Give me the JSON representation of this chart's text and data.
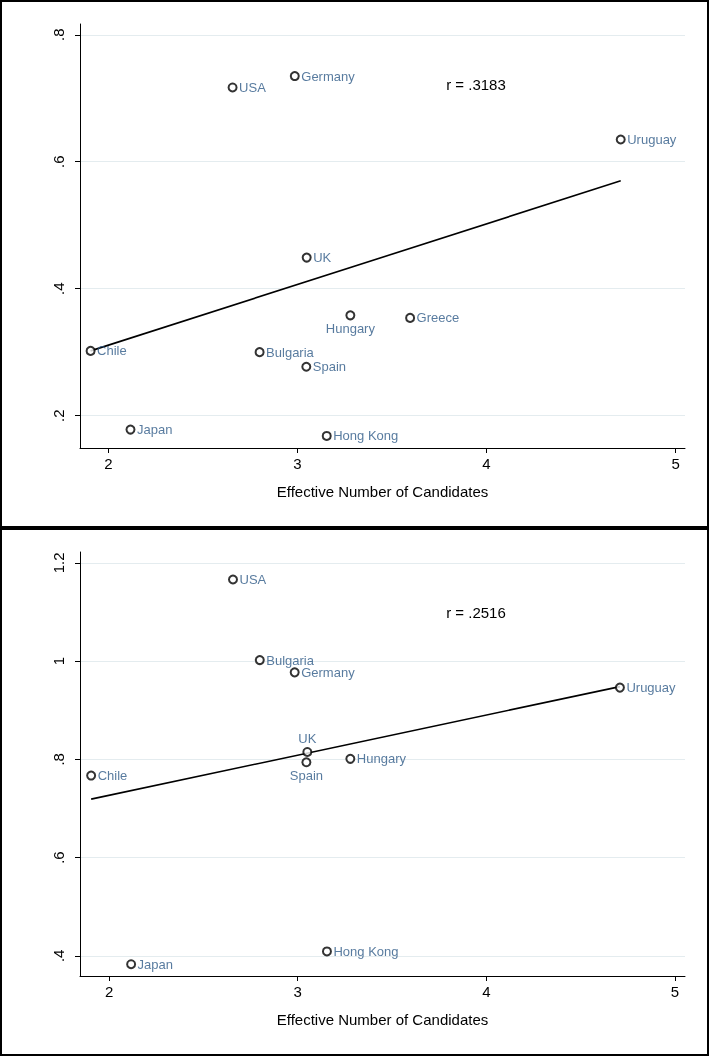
{
  "chart_data": [
    {
      "type": "scatter",
      "xlabel": "Effective Number of Candidates",
      "xlim": [
        1.85,
        5.05
      ],
      "xticks": [
        2,
        3,
        4,
        5
      ],
      "ylim": [
        0.149,
        0.817
      ],
      "yticks": [
        {
          "value": 0.2,
          "label": ".2"
        },
        {
          "value": 0.4,
          "label": ".4"
        },
        {
          "value": 0.6,
          "label": ".6"
        },
        {
          "value": 0.8,
          "label": ".8"
        }
      ],
      "grid": "y",
      "series": [
        {
          "color": "#000000",
          "marker": "circle",
          "x": [
            2.657,
            2.986,
            4.71,
            3.049,
            3.28,
            3.596,
            1.906,
            2.8,
            3.047,
            2.117,
            3.155
          ],
          "values": [
            0.717,
            0.735,
            0.635,
            0.449,
            0.358,
            0.354,
            0.302,
            0.3,
            0.277,
            0.178,
            0.168
          ]
        },
        {
          "type": "line",
          "color": "#000000",
          "marker": "none",
          "line_style": "solid",
          "x": [
            1.906,
            4.71
          ],
          "values": [
            0.302,
            0.57
          ]
        }
      ],
      "annotations": [
        "r = .3183",
        {
          "text": "USA",
          "x": 2.657,
          "y": 0.717
        },
        {
          "text": "Germany",
          "x": 2.986,
          "y": 0.735
        },
        {
          "text": "Uruguay",
          "x": 4.71,
          "y": 0.635
        },
        {
          "text": "UK",
          "x": 3.049,
          "y": 0.449
        },
        {
          "text": "Hungary",
          "x": 3.28,
          "y": 0.358
        },
        {
          "text": "Greece",
          "x": 3.596,
          "y": 0.354
        },
        {
          "text": "Chile",
          "x": 1.906,
          "y": 0.302
        },
        {
          "text": "Bulgaria",
          "x": 2.8,
          "y": 0.3
        },
        {
          "text": "Spain",
          "x": 3.047,
          "y": 0.277
        },
        {
          "text": "Japan",
          "x": 2.117,
          "y": 0.178
        },
        {
          "text": "Hong Kong",
          "x": 3.155,
          "y": 0.168
        }
      ]
    },
    {
      "type": "scatter",
      "xlabel": "Effective Number of Candidates",
      "xlim": [
        1.846,
        5.053
      ],
      "xticks": [
        2,
        3,
        4,
        5
      ],
      "ylim": [
        0.359,
        1.222
      ],
      "yticks": [
        {
          "value": 0.4,
          "label": ".4"
        },
        {
          "value": 0.6,
          "label": ".6"
        },
        {
          "value": 0.8,
          "label": ".8"
        },
        1,
        1.2
      ],
      "grid": "y",
      "series": [
        {
          "color": "#000000",
          "marker": "circle",
          "x": [
            2.657,
            2.799,
            2.984,
            4.708,
            3.051,
            3.046,
            3.279,
            1.905,
            3.155,
            2.117
          ],
          "values": [
            1.166,
            1.002,
            0.977,
            0.946,
            0.815,
            0.794,
            0.801,
            0.767,
            0.409,
            0.383
          ]
        },
        {
          "type": "line",
          "color": "#000000",
          "marker": "none",
          "line_style": "solid",
          "x": [
            1.905,
            4.708
          ],
          "values": [
            0.719,
            0.948
          ]
        }
      ],
      "annotations": [
        "r = .2516",
        {
          "text": "USA",
          "x": 2.657,
          "y": 1.166
        },
        {
          "text": "Bulgaria",
          "x": 2.799,
          "y": 1.002
        },
        {
          "text": "Germany",
          "x": 2.984,
          "y": 0.977
        },
        {
          "text": "Uruguay",
          "x": 4.708,
          "y": 0.946
        },
        {
          "text": "UK",
          "x": 3.051,
          "y": 0.815
        },
        {
          "text": "Spain",
          "x": 3.046,
          "y": 0.794
        },
        {
          "text": "Hungary",
          "x": 3.279,
          "y": 0.801
        },
        {
          "text": "Chile",
          "x": 1.905,
          "y": 0.767
        },
        {
          "text": "Hong Kong",
          "x": 3.155,
          "y": 0.409
        },
        {
          "text": "Japan",
          "x": 2.117,
          "y": 0.383
        }
      ]
    }
  ]
}
